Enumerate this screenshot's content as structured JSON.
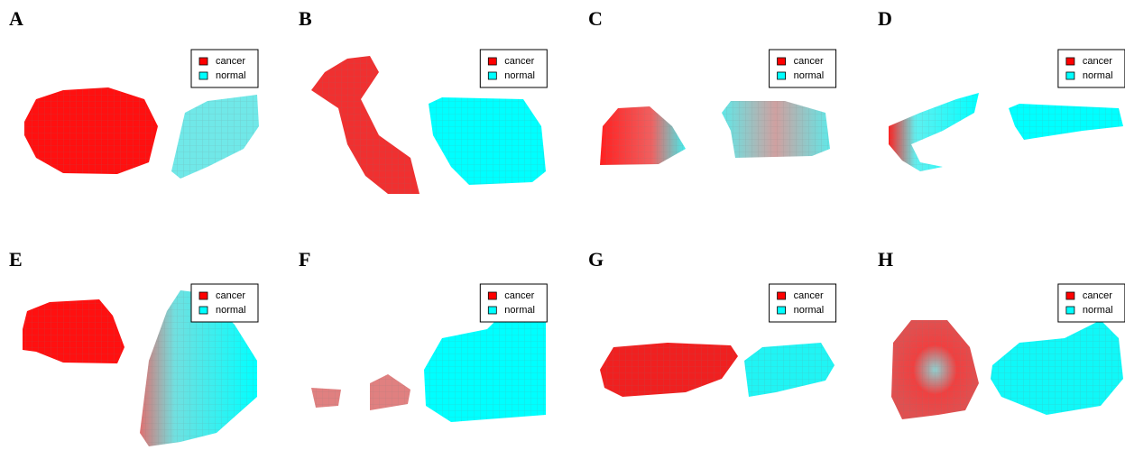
{
  "panels": [
    {
      "label": "A",
      "legend": [
        {
          "name": "cancer",
          "color": "#ff0000"
        },
        {
          "name": "normal",
          "color": "#00ffff"
        }
      ]
    },
    {
      "label": "B",
      "legend": [
        {
          "name": "cancer",
          "color": "#ff0000"
        },
        {
          "name": "normal",
          "color": "#00ffff"
        }
      ]
    },
    {
      "label": "C",
      "legend": [
        {
          "name": "cancer",
          "color": "#ff0000"
        },
        {
          "name": "normal",
          "color": "#00ffff"
        }
      ]
    },
    {
      "label": "D",
      "legend": [
        {
          "name": "cancer",
          "color": "#ff0000"
        },
        {
          "name": "normal",
          "color": "#00ffff"
        }
      ]
    },
    {
      "label": "E",
      "legend": [
        {
          "name": "cancer",
          "color": "#ff0000"
        },
        {
          "name": "normal",
          "color": "#00ffff"
        }
      ]
    },
    {
      "label": "F",
      "legend": [
        {
          "name": "cancer",
          "color": "#ff0000"
        },
        {
          "name": "normal",
          "color": "#00ffff"
        }
      ]
    },
    {
      "label": "G",
      "legend": [
        {
          "name": "cancer",
          "color": "#ff0000"
        },
        {
          "name": "normal",
          "color": "#00ffff"
        }
      ]
    },
    {
      "label": "H",
      "legend": [
        {
          "name": "cancer",
          "color": "#ff0000"
        },
        {
          "name": "normal",
          "color": "#00ffff"
        }
      ]
    }
  ]
}
